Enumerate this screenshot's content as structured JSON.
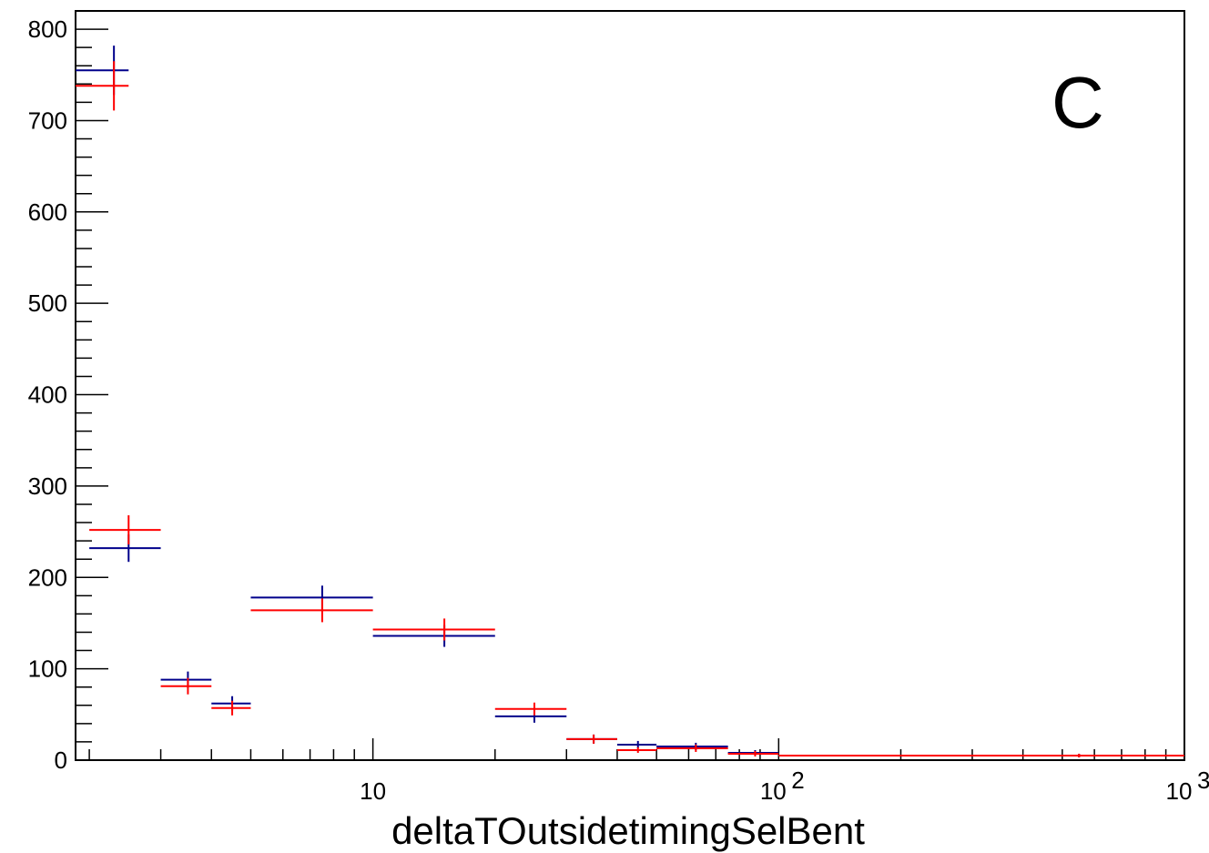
{
  "chart_data": {
    "type": "scatter",
    "title": "",
    "panel_label": "C",
    "xlabel": "deltaTOutsidetimingSelBent",
    "ylabel": "",
    "x_scale": "log",
    "xlim": [
      1.85,
      1000
    ],
    "ylim": [
      0,
      820
    ],
    "grid": false,
    "y_ticks": [
      "0",
      "100",
      "200",
      "300",
      "400",
      "500",
      "600",
      "700",
      "800"
    ],
    "x_tick_labels": [
      {
        "value": 10,
        "base": "10",
        "exp": ""
      },
      {
        "value": 100,
        "base": "10",
        "exp": "2"
      },
      {
        "value": 1000,
        "base": "10",
        "exp": "3"
      }
    ],
    "series": [
      {
        "color": "#00008b",
        "points": [
          {
            "x": 2.3,
            "xlow": 1.85,
            "xhigh": 2.5,
            "y": 755,
            "err": 27
          },
          {
            "x": 2.5,
            "xlow": 2.0,
            "xhigh": 3.0,
            "y": 232,
            "err": 15
          },
          {
            "x": 3.5,
            "xlow": 3.0,
            "xhigh": 4.0,
            "y": 88,
            "err": 9
          },
          {
            "x": 4.5,
            "xlow": 4.0,
            "xhigh": 5.0,
            "y": 62,
            "err": 8
          },
          {
            "x": 7.5,
            "xlow": 5.0,
            "xhigh": 10.0,
            "y": 178,
            "err": 13
          },
          {
            "x": 15,
            "xlow": 10,
            "xhigh": 20,
            "y": 136,
            "err": 12
          },
          {
            "x": 25,
            "xlow": 20,
            "xhigh": 30,
            "y": 48,
            "err": 7
          },
          {
            "x": 35,
            "xlow": 30,
            "xhigh": 40,
            "y": 23,
            "err": 5
          },
          {
            "x": 45,
            "xlow": 40,
            "xhigh": 50,
            "y": 17,
            "err": 4
          },
          {
            "x": 62.5,
            "xlow": 50,
            "xhigh": 75,
            "y": 15,
            "err": 4
          },
          {
            "x": 87.5,
            "xlow": 75,
            "xhigh": 100,
            "y": 8,
            "err": 3
          },
          {
            "x": 550,
            "xlow": 100,
            "xhigh": 1000,
            "y": 5,
            "err": 2
          }
        ]
      },
      {
        "color": "#ff0000",
        "points": [
          {
            "x": 2.3,
            "xlow": 1.85,
            "xhigh": 2.5,
            "y": 738,
            "err": 27
          },
          {
            "x": 2.5,
            "xlow": 2.0,
            "xhigh": 3.0,
            "y": 252,
            "err": 16
          },
          {
            "x": 3.5,
            "xlow": 3.0,
            "xhigh": 4.0,
            "y": 81,
            "err": 9
          },
          {
            "x": 4.5,
            "xlow": 4.0,
            "xhigh": 5.0,
            "y": 57,
            "err": 8
          },
          {
            "x": 7.5,
            "xlow": 5.0,
            "xhigh": 10.0,
            "y": 164,
            "err": 13
          },
          {
            "x": 15,
            "xlow": 10,
            "xhigh": 20,
            "y": 143,
            "err": 12
          },
          {
            "x": 25,
            "xlow": 20,
            "xhigh": 30,
            "y": 56,
            "err": 7
          },
          {
            "x": 35,
            "xlow": 30,
            "xhigh": 40,
            "y": 23,
            "err": 5
          },
          {
            "x": 45,
            "xlow": 40,
            "xhigh": 50,
            "y": 11,
            "err": 3
          },
          {
            "x": 62.5,
            "xlow": 50,
            "xhigh": 75,
            "y": 13,
            "err": 4
          },
          {
            "x": 87.5,
            "xlow": 75,
            "xhigh": 100,
            "y": 7,
            "err": 3
          },
          {
            "x": 550,
            "xlow": 100,
            "xhigh": 1000,
            "y": 5,
            "err": 2
          }
        ]
      }
    ]
  }
}
